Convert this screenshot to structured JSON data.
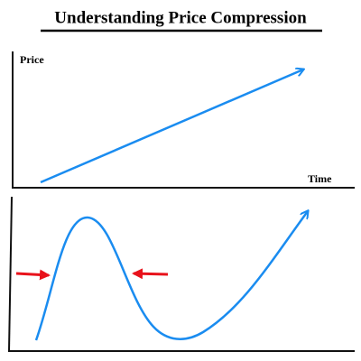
{
  "title": "Understanding Price Compression",
  "labels": {
    "y_axis": "Price",
    "x_axis": "Time"
  }
}
